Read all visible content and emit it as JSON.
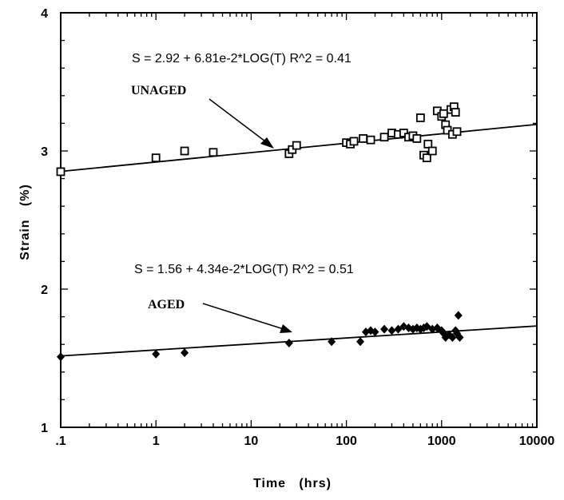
{
  "chart_data": {
    "type": "scatter",
    "xscale": "log",
    "xlim": [
      0.1,
      10000
    ],
    "ylim": [
      1,
      4
    ],
    "xlabel": "Time   (hrs)",
    "ylabel": "Strain   (%)",
    "xtick_labels": [
      ".1",
      "1",
      "10",
      "100",
      "1000",
      "10000"
    ],
    "xticks": [
      0.1,
      1,
      10,
      100,
      1000,
      10000
    ],
    "ytick_labels": [
      "1",
      "2",
      "3",
      "4"
    ],
    "yticks": [
      1,
      2,
      3,
      4
    ],
    "grid": false,
    "annotations": {
      "unaged_eq": "S = 2.92 + 6.81e-2*LOG(T)    R^2 = 0.41",
      "unaged_label": "UNAGED",
      "aged_eq": "S = 1.56 + 4.34e-2*LOG(T)    R^2 = 0.51",
      "aged_label": "AGED"
    },
    "series": [
      {
        "name": "UNAGED",
        "marker": "open-square",
        "fit": {
          "intercept": 2.92,
          "slope": 0.0681
        },
        "points": [
          [
            0.1,
            2.85
          ],
          [
            1,
            2.95
          ],
          [
            2,
            3.0
          ],
          [
            4,
            2.99
          ],
          [
            25,
            2.98
          ],
          [
            27,
            3.01
          ],
          [
            30,
            3.04
          ],
          [
            100,
            3.06
          ],
          [
            110,
            3.05
          ],
          [
            120,
            3.07
          ],
          [
            150,
            3.09
          ],
          [
            180,
            3.08
          ],
          [
            250,
            3.1
          ],
          [
            300,
            3.13
          ],
          [
            350,
            3.12
          ],
          [
            400,
            3.13
          ],
          [
            450,
            3.1
          ],
          [
            500,
            3.11
          ],
          [
            550,
            3.09
          ],
          [
            600,
            3.24
          ],
          [
            650,
            2.97
          ],
          [
            700,
            2.95
          ],
          [
            720,
            3.05
          ],
          [
            800,
            3.0
          ],
          [
            900,
            3.29
          ],
          [
            1000,
            3.25
          ],
          [
            1050,
            3.27
          ],
          [
            1100,
            3.19
          ],
          [
            1150,
            3.15
          ],
          [
            1250,
            3.3
          ],
          [
            1300,
            3.12
          ],
          [
            1350,
            3.32
          ],
          [
            1400,
            3.28
          ],
          [
            1450,
            3.14
          ]
        ]
      },
      {
        "name": "AGED",
        "marker": "filled-diamond",
        "fit": {
          "intercept": 1.56,
          "slope": 0.0434
        },
        "points": [
          [
            0.1,
            1.51
          ],
          [
            1,
            1.53
          ],
          [
            2,
            1.54
          ],
          [
            25,
            1.61
          ],
          [
            70,
            1.62
          ],
          [
            140,
            1.62
          ],
          [
            160,
            1.69
          ],
          [
            180,
            1.7
          ],
          [
            200,
            1.69
          ],
          [
            250,
            1.71
          ],
          [
            300,
            1.7
          ],
          [
            350,
            1.71
          ],
          [
            400,
            1.73
          ],
          [
            450,
            1.72
          ],
          [
            500,
            1.71
          ],
          [
            550,
            1.72
          ],
          [
            600,
            1.71
          ],
          [
            650,
            1.72
          ],
          [
            700,
            1.73
          ],
          [
            800,
            1.71
          ],
          [
            900,
            1.72
          ],
          [
            1000,
            1.7
          ],
          [
            1050,
            1.68
          ],
          [
            1100,
            1.65
          ],
          [
            1200,
            1.67
          ],
          [
            1300,
            1.65
          ],
          [
            1400,
            1.7
          ],
          [
            1450,
            1.68
          ],
          [
            1500,
            1.81
          ],
          [
            1550,
            1.65
          ]
        ]
      }
    ]
  }
}
